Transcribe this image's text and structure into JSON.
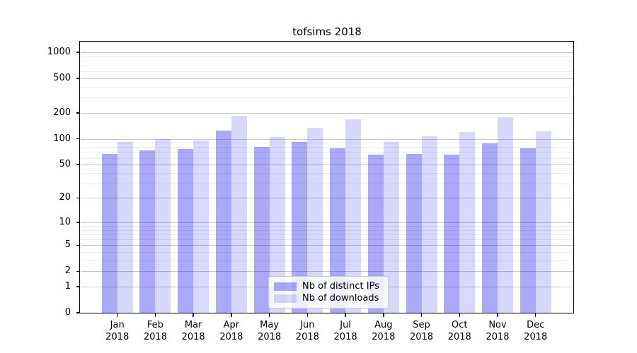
{
  "chart_data": {
    "type": "bar",
    "title": "tofsims 2018",
    "categories": [
      "Jan 2018",
      "Feb 2018",
      "Mar 2018",
      "Apr 2018",
      "May 2018",
      "Jun 2018",
      "Jul 2018",
      "Aug 2018",
      "Sep 2018",
      "Oct 2018",
      "Nov 2018",
      "Dec 2018"
    ],
    "series": [
      {
        "name": "Nb of distinct IPs",
        "color": "rgba(10,10,235,0.35)",
        "values": [
          67,
          73,
          76,
          125,
          80,
          93,
          78,
          66,
          67,
          65,
          88,
          78
        ]
      },
      {
        "name": "Nb of downloads",
        "color": "rgba(10,10,235,0.16)",
        "values": [
          92,
          100,
          95,
          185,
          106,
          135,
          168,
          93,
          107,
          119,
          180,
          123
        ]
      }
    ],
    "yscale": "log1p",
    "yticks": [
      0,
      1,
      2,
      5,
      10,
      20,
      50,
      100,
      200,
      500,
      1000
    ],
    "minor_yticks": [
      3,
      4,
      6,
      7,
      8,
      9,
      30,
      40,
      60,
      70,
      80,
      90,
      300,
      400,
      600,
      700,
      800,
      900
    ],
    "ylim": [
      0,
      1300
    ],
    "xlabel": "",
    "ylabel": "",
    "grid": true,
    "legend_position": "lower-center",
    "colors": {
      "background": "#ffffff",
      "spine": "#000000",
      "grid_major": "#c9c9c9",
      "grid_minor": "#ececec",
      "text": "#000000",
      "legend_border": "#cccccc"
    }
  }
}
